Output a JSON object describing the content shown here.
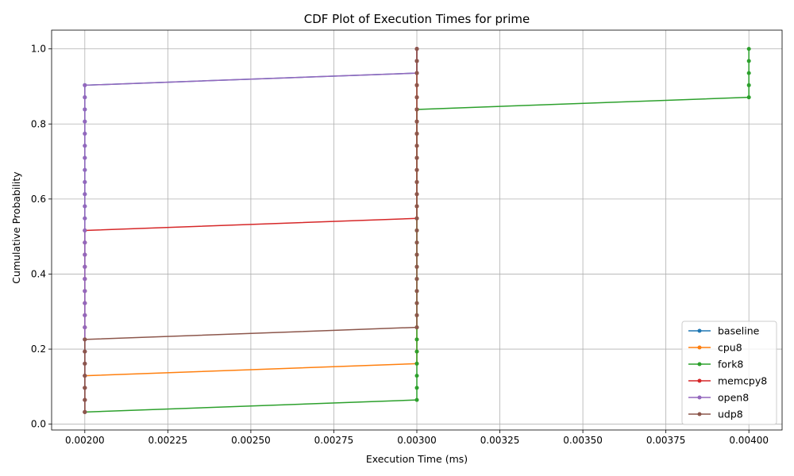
{
  "chart_data": {
    "type": "line",
    "title": "CDF Plot of Execution Times for prime",
    "xlabel": "Execution Time (ms)",
    "ylabel": "Cumulative Probability",
    "xlim": [
      0.0019,
      0.0041
    ],
    "ylim": [
      -0.0155,
      1.05
    ],
    "xticks": [
      0.002,
      0.00225,
      0.0025,
      0.00275,
      0.003,
      0.00325,
      0.0035,
      0.00375,
      0.004
    ],
    "xtick_labels": [
      "0.00200",
      "0.00225",
      "0.00250",
      "0.00275",
      "0.00300",
      "0.00325",
      "0.00350",
      "0.00375",
      "0.00400"
    ],
    "yticks": [
      0.0,
      0.2,
      0.4,
      0.6,
      0.8,
      1.0
    ],
    "ytick_labels": [
      "0.0",
      "0.2",
      "0.4",
      "0.6",
      "0.8",
      "1.0"
    ],
    "grid": true,
    "legend_position": "bottom-right",
    "series": [
      {
        "name": "baseline",
        "color": "#1f77b4",
        "n": 31,
        "x": [
          0.002,
          0.002,
          0.002,
          0.002,
          0.002,
          0.002,
          0.002,
          0.002,
          0.002,
          0.002,
          0.002,
          0.002,
          0.002,
          0.002,
          0.002,
          0.002,
          0.002,
          0.002,
          0.002,
          0.002,
          0.002,
          0.002,
          0.002,
          0.002,
          0.002,
          0.002,
          0.002,
          0.002,
          0.003,
          0.003,
          0.003
        ]
      },
      {
        "name": "cpu8",
        "color": "#ff7f0e",
        "n": 31,
        "x": [
          0.002,
          0.002,
          0.002,
          0.002,
          0.003,
          0.003,
          0.003,
          0.003,
          0.003,
          0.003,
          0.003,
          0.003,
          0.003,
          0.003,
          0.003,
          0.003,
          0.003,
          0.003,
          0.003,
          0.003,
          0.003,
          0.003,
          0.003,
          0.003,
          0.003,
          0.003,
          0.003,
          0.003,
          0.003,
          0.003,
          0.003
        ]
      },
      {
        "name": "fork8",
        "color": "#2ca02c",
        "n": 31,
        "x": [
          0.002,
          0.003,
          0.003,
          0.003,
          0.003,
          0.003,
          0.003,
          0.003,
          0.003,
          0.003,
          0.003,
          0.003,
          0.003,
          0.003,
          0.003,
          0.003,
          0.003,
          0.003,
          0.003,
          0.003,
          0.003,
          0.003,
          0.003,
          0.003,
          0.003,
          0.003,
          0.004,
          0.004,
          0.004,
          0.004,
          0.004
        ]
      },
      {
        "name": "memcpy8",
        "color": "#d62728",
        "n": 31,
        "x": [
          0.002,
          0.002,
          0.002,
          0.002,
          0.002,
          0.002,
          0.002,
          0.002,
          0.002,
          0.002,
          0.002,
          0.002,
          0.002,
          0.002,
          0.002,
          0.002,
          0.003,
          0.003,
          0.003,
          0.003,
          0.003,
          0.003,
          0.003,
          0.003,
          0.003,
          0.003,
          0.003,
          0.003,
          0.003,
          0.003,
          0.003
        ]
      },
      {
        "name": "open8",
        "color": "#9467bd",
        "n": 31,
        "x": [
          0.002,
          0.002,
          0.002,
          0.002,
          0.002,
          0.002,
          0.002,
          0.002,
          0.002,
          0.002,
          0.002,
          0.002,
          0.002,
          0.002,
          0.002,
          0.002,
          0.002,
          0.002,
          0.002,
          0.002,
          0.002,
          0.002,
          0.002,
          0.002,
          0.002,
          0.002,
          0.002,
          0.002,
          0.003,
          0.003,
          0.003
        ]
      },
      {
        "name": "udp8",
        "color": "#8c564b",
        "n": 31,
        "x": [
          0.002,
          0.002,
          0.002,
          0.002,
          0.002,
          0.002,
          0.002,
          0.003,
          0.003,
          0.003,
          0.003,
          0.003,
          0.003,
          0.003,
          0.003,
          0.003,
          0.003,
          0.003,
          0.003,
          0.003,
          0.003,
          0.003,
          0.003,
          0.003,
          0.003,
          0.003,
          0.003,
          0.003,
          0.003,
          0.003,
          0.003
        ]
      }
    ]
  }
}
